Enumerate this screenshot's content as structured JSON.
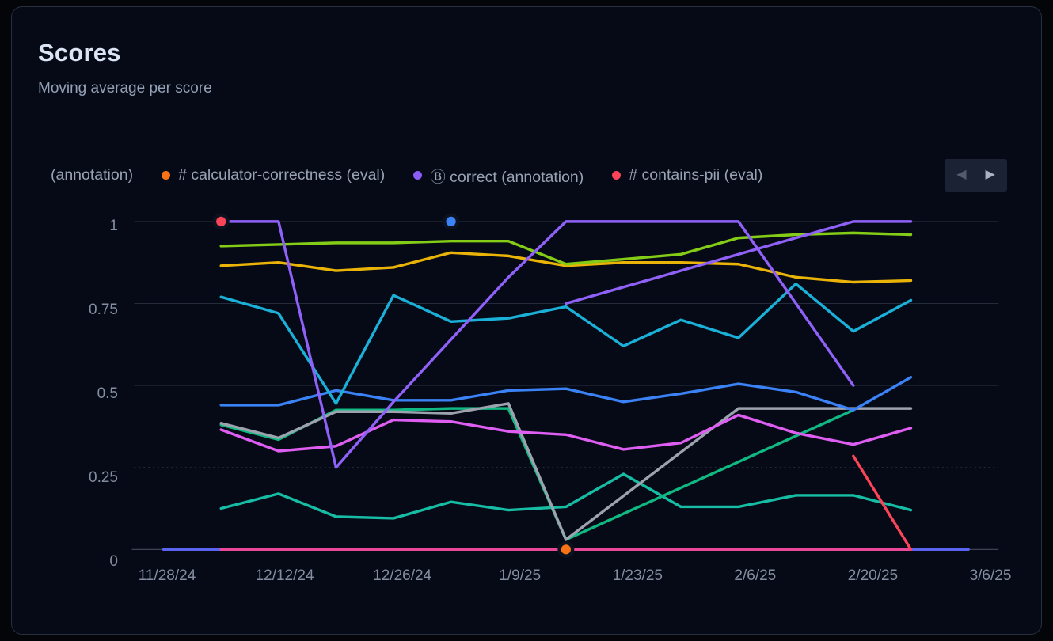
{
  "card": {
    "title": "Scores",
    "subtitle": "Moving average per score"
  },
  "legend": {
    "items": [
      {
        "label": "(annotation)",
        "color": null
      },
      {
        "label": "# calculator-correctness (eval)",
        "color": "#f97316"
      },
      {
        "label": "Ⓑ correct (annotation)",
        "color": "#8b5cf6"
      },
      {
        "label": "# contains-pii (eval)",
        "color": "#fb4458"
      }
    ],
    "nav": {
      "prev": "◀",
      "next": "▶"
    }
  },
  "chart_data": {
    "type": "line",
    "title": "Scores",
    "subtitle": "Moving average per score",
    "x_axis": {
      "unit": "week-index (weekly points, ticks every 2 weeks)",
      "range": [
        0,
        14
      ],
      "tick_positions": [
        0,
        2,
        4,
        6,
        8,
        10,
        12,
        14
      ],
      "tick_labels": [
        "11/28/24",
        "12/12/24",
        "12/26/24",
        "1/9/25",
        "1/23/25",
        "2/6/25",
        "2/20/25",
        "3/6/25"
      ]
    },
    "y_axis": {
      "range": [
        0,
        1
      ],
      "tick_values": [
        0,
        0.25,
        0.5,
        0.75,
        1
      ],
      "tick_labels": [
        "0",
        "0.25",
        "0.5",
        "0.75",
        "1"
      ]
    },
    "grid": true,
    "legend_position": "top",
    "series": [
      {
        "id": "flat-zero-indigo",
        "label": null,
        "color": "#5b63f1",
        "points": [
          [
            0,
            0
          ],
          [
            1,
            0
          ],
          [
            2,
            0
          ],
          [
            3,
            0
          ],
          [
            4,
            0
          ],
          [
            5,
            0
          ],
          [
            6,
            0
          ],
          [
            7,
            0
          ],
          [
            8,
            0
          ],
          [
            9,
            0
          ],
          [
            10,
            0
          ],
          [
            11,
            0
          ],
          [
            12,
            0
          ],
          [
            13,
            0
          ],
          [
            14,
            0
          ]
        ]
      },
      {
        "id": "flat-zero-pink",
        "label": null,
        "color": "#ec4899",
        "points": [
          [
            1,
            0
          ],
          [
            2,
            0
          ],
          [
            3,
            0
          ],
          [
            4,
            0
          ],
          [
            5,
            0
          ],
          [
            6,
            0
          ],
          [
            7,
            0
          ],
          [
            8,
            0
          ],
          [
            9,
            0
          ],
          [
            10,
            0
          ],
          [
            11,
            0
          ],
          [
            12,
            0
          ],
          [
            13,
            0
          ]
        ]
      },
      {
        "id": "teal",
        "label": null,
        "color": "#17bca4",
        "points": [
          [
            1,
            0.125
          ],
          [
            2,
            0.17
          ],
          [
            3,
            0.1
          ],
          [
            4,
            0.095
          ],
          [
            5,
            0.145
          ],
          [
            6,
            0.12
          ],
          [
            7,
            0.13
          ],
          [
            8,
            0.23
          ],
          [
            9,
            0.13
          ],
          [
            10,
            0.13
          ],
          [
            11,
            0.165
          ],
          [
            12,
            0.165
          ],
          [
            13,
            0.12
          ]
        ]
      },
      {
        "id": "emerald",
        "label": null,
        "color": "#10b981",
        "points": [
          [
            1,
            0.38
          ],
          [
            2,
            0.335
          ],
          [
            3,
            0.425
          ],
          [
            4,
            0.425
          ],
          [
            5,
            0.43
          ],
          [
            6,
            0.43
          ],
          [
            7,
            0.03
          ],
          [
            12,
            0.425
          ]
        ]
      },
      {
        "id": "gray",
        "label": null,
        "color": "#9ca3af",
        "points": [
          [
            1,
            0.385
          ],
          [
            2,
            0.34
          ],
          [
            3,
            0.42
          ],
          [
            4,
            0.42
          ],
          [
            5,
            0.415
          ],
          [
            6,
            0.445
          ],
          [
            7,
            0.03
          ],
          [
            10,
            0.43
          ],
          [
            11,
            0.43
          ],
          [
            12,
            0.43
          ],
          [
            13,
            0.43
          ]
        ]
      },
      {
        "id": "magenta",
        "label": null,
        "color": "#df5ef2",
        "points": [
          [
            1,
            0.365
          ],
          [
            2,
            0.3
          ],
          [
            3,
            0.315
          ],
          [
            4,
            0.395
          ],
          [
            5,
            0.39
          ],
          [
            6,
            0.36
          ],
          [
            7,
            0.35
          ],
          [
            8,
            0.305
          ],
          [
            9,
            0.325
          ],
          [
            10,
            0.41
          ],
          [
            11,
            0.355
          ],
          [
            12,
            0.32
          ],
          [
            13,
            0.37
          ]
        ]
      },
      {
        "id": "blue",
        "label": null,
        "color": "#3b82f6",
        "points": [
          [
            1,
            0.44
          ],
          [
            2,
            0.44
          ],
          [
            3,
            0.485
          ],
          [
            4,
            0.455
          ],
          [
            5,
            0.455
          ],
          [
            6,
            0.485
          ],
          [
            7,
            0.49
          ],
          [
            8,
            0.45
          ],
          [
            9,
            0.475
          ],
          [
            10,
            0.505
          ],
          [
            11,
            0.48
          ],
          [
            12,
            0.425
          ],
          [
            13,
            0.525
          ]
        ]
      },
      {
        "id": "cyan",
        "label": null,
        "color": "#1ab0d8",
        "points": [
          [
            1,
            0.77
          ],
          [
            2,
            0.72
          ],
          [
            3,
            0.445
          ],
          [
            4,
            0.775
          ],
          [
            5,
            0.695
          ],
          [
            6,
            0.705
          ],
          [
            7,
            0.74
          ],
          [
            8,
            0.62
          ],
          [
            9,
            0.7
          ],
          [
            10,
            0.645
          ],
          [
            11,
            0.81
          ],
          [
            12,
            0.665
          ],
          [
            13,
            0.76
          ]
        ]
      },
      {
        "id": "amber",
        "label": null,
        "color": "#eab308",
        "points": [
          [
            1,
            0.865
          ],
          [
            2,
            0.875
          ],
          [
            3,
            0.85
          ],
          [
            4,
            0.86
          ],
          [
            5,
            0.905
          ],
          [
            6,
            0.895
          ],
          [
            7,
            0.865
          ],
          [
            8,
            0.875
          ],
          [
            9,
            0.875
          ],
          [
            10,
            0.87
          ],
          [
            11,
            0.83
          ],
          [
            12,
            0.815
          ],
          [
            13,
            0.82
          ]
        ]
      },
      {
        "id": "lime",
        "label": null,
        "color": "#84cc16",
        "points": [
          [
            1,
            0.925
          ],
          [
            2,
            0.93
          ],
          [
            3,
            0.935
          ],
          [
            4,
            0.935
          ],
          [
            5,
            0.94
          ],
          [
            6,
            0.94
          ],
          [
            7,
            0.87
          ],
          [
            8,
            0.885
          ],
          [
            9,
            0.9
          ],
          [
            10,
            0.95
          ],
          [
            11,
            0.96
          ],
          [
            12,
            0.965
          ],
          [
            13,
            0.96
          ]
        ]
      },
      {
        "id": "violet-correct",
        "label": "Ⓑ correct (annotation)",
        "color": "#9061f9",
        "points": [
          [
            1,
            1
          ],
          [
            2,
            1
          ],
          [
            3,
            0.25
          ],
          [
            4,
            0.45
          ],
          [
            5,
            0.64
          ],
          [
            6,
            0.83
          ],
          [
            7,
            1
          ],
          [
            8,
            1
          ],
          [
            9,
            1
          ],
          [
            10,
            1
          ],
          [
            12,
            0.5
          ]
        ]
      },
      {
        "id": "violet-2",
        "label": null,
        "color": "#9061f9",
        "points": [
          [
            7,
            0.75
          ],
          [
            12,
            1
          ],
          [
            13,
            1
          ]
        ]
      },
      {
        "id": "rose-segment",
        "label": null,
        "color": "#fb4458",
        "points": [
          [
            12,
            0.285
          ],
          [
            13,
            0
          ]
        ]
      },
      {
        "id": "rose-pii-point",
        "label": "# contains-pii (eval)",
        "color": "#fb4458",
        "points": [
          [
            1,
            1
          ]
        ],
        "marker": true
      },
      {
        "id": "blue-point",
        "label": null,
        "color": "#3b82f6",
        "points": [
          [
            5,
            1
          ]
        ],
        "marker": true
      },
      {
        "id": "orange-calculator-point",
        "label": "# calculator-correctness (eval)",
        "color": "#f97316",
        "points": [
          [
            7,
            0
          ]
        ],
        "marker": true
      }
    ]
  }
}
